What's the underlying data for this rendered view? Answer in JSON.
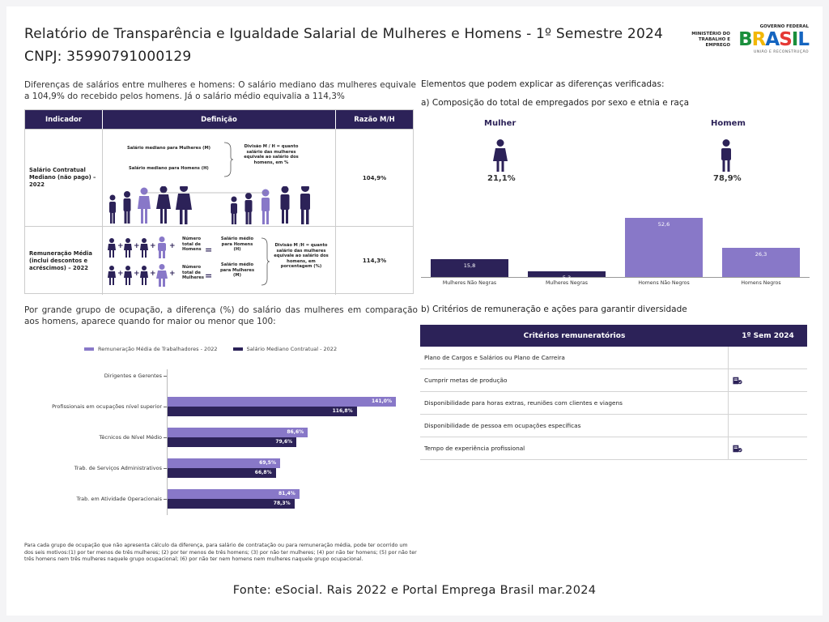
{
  "header": {
    "title": "Relatório de Transparência e Igualdade Salarial de Mulheres e Homens - 1º Semestre 2024",
    "cnpj": "CNPJ: 35990791000129",
    "ministry": "MINISTÉRIO DO TRABALHO E EMPREGO",
    "gov_top": "GOVERNO FEDERAL",
    "gov_word": "BRASIL",
    "gov_sub": "UNIÃO E RECONSTRUÇÃO"
  },
  "left_intro": "Diferenças de salários entre mulheres e homens: O salário mediano das mulheres equivale a 104,9% do recebido pelos homens. Já o salário médio equivalia a 114,3%",
  "indicator_table": {
    "headers": [
      "Indicador",
      "Definição",
      "Razão M/H"
    ],
    "row1": {
      "indicator": "Salário Contratual Mediano (não pago) – 2022",
      "label_women": "Salário mediano para Mulheres (M)",
      "label_men": "Salário mediano para Homens (H)",
      "division": "Divisão M / H = quanto salário das mulheres equivale ao salário dos homens, em %",
      "value": "104,9%"
    },
    "row2": {
      "indicator": "Remuneração Média (inclui descontos e acréscimos) – 2022",
      "total_men": "Número total de Homens",
      "avg_men": "Salário médio para Homens (H)",
      "total_women": "Número total de Mulheres",
      "avg_women": "Salário médio para Mulheres (M)",
      "division": "Divisão M /H = quanto salário das mulheres equivale ao salário dos homens, em porcentagem (%)",
      "value": "114,3%"
    }
  },
  "right_intro": "Elementos que podem explicar as diferenças verificadas:",
  "right_a": "a) Composição do total de empregados por sexo e etnia e raça",
  "gender": {
    "women_label": "Mulher",
    "women_pct": "21,1%",
    "men_label": "Homem",
    "men_pct": "78,9%"
  },
  "chart_data": [
    {
      "type": "bar",
      "categories": [
        "Mulheres Não Negras",
        "Mulheres Negras",
        "Homens Não Negros",
        "Homens Negros"
      ],
      "values": [
        15.8,
        5.3,
        52.6,
        26.3
      ],
      "value_labels": [
        "15,8",
        "5,3",
        "52,6",
        "26,3"
      ],
      "colors": [
        "#2c2258",
        "#2c2258",
        "#8878c8",
        "#8878c8"
      ],
      "ylim": [
        0,
        60
      ]
    },
    {
      "type": "bar",
      "orientation": "horizontal",
      "categories": [
        "Dirigentes e Gerentes",
        "Profissionais em ocupações nível superior",
        "Técnicos de Nível Médio",
        "Trab. de Serviços Administrativos",
        "Trab. em Atividade Operacionais"
      ],
      "series": [
        {
          "name": "Remuneração Média de Trabalhadores - 2022",
          "values": [
            null,
            141.0,
            86.6,
            69.5,
            81.4
          ],
          "labels": [
            "",
            "141,0%",
            "86,6%",
            "69,5%",
            "81,4%"
          ],
          "color": "#8878c8"
        },
        {
          "name": "Salário Mediano Contratual - 2022",
          "values": [
            null,
            116.8,
            79.6,
            66.8,
            78.3
          ],
          "labels": [
            "",
            "116,8%",
            "79,6%",
            "66,8%",
            "78,3%"
          ],
          "color": "#2c2258"
        }
      ],
      "xlim": [
        0,
        150
      ],
      "legend": "top"
    }
  ],
  "left_b": "Por grande grupo de ocupação, a diferença (%) do salário das mulheres em comparação aos homens, aparece quando for maior ou menor que 100:",
  "right_b": "b) Critérios de remuneração e ações para garantir diversidade",
  "criteria": {
    "headers": [
      "Critérios remuneratórios",
      "1º Sem 2024"
    ],
    "rows": [
      {
        "label": "Plano de Cargos e Salários ou Plano de Carreira",
        "checked": false
      },
      {
        "label": "Cumprir metas de produção",
        "checked": true
      },
      {
        "label": "Disponibilidade para horas extras, reuniões com clientes e viagens",
        "checked": false
      },
      {
        "label": "Disponibilidade de pessoa em ocupações específicas",
        "checked": false
      },
      {
        "label": "Tempo de experiência profissional",
        "checked": true
      }
    ]
  },
  "footnote": "Para cada grupo de ocupação que não apresenta cálculo da diferença, para salário de contratação ou para remuneração média, pode ter ocorrido um dos seis motivos:(1) por ter menos de três mulheres; (2) por ter menos de três homens; (3) por não ter mulheres; (4) por não ter homens; (5) por não ter três homens nem três mulheres naquele grupo ocupacional; (6) por não ter nem homens nem mulheres naquele grupo ocupacional.",
  "source": "Fonte: eSocial. Rais 2022 e Portal Emprega Brasil mar.2024",
  "colors": {
    "navy": "#2c2258",
    "lavender": "#8878c8"
  }
}
